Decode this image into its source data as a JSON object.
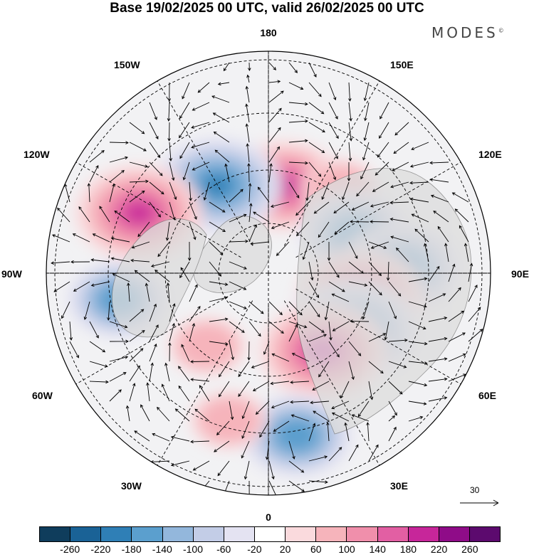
{
  "title": "Base 19/02/2025 00 UTC, valid 26/02/2025 00 UTC",
  "brand": "MODES",
  "brand_mark": "©",
  "longitude_labels": {
    "north": "180",
    "south": "0",
    "west": "90W",
    "east": "90E",
    "nw1": "150W",
    "nw2": "120W",
    "ne1": "150E",
    "ne2": "120E",
    "sw1": "60W",
    "sw2": "30W",
    "se1": "60E",
    "se2": "30E"
  },
  "reference_vector": {
    "label": "30",
    "icon": "arrow-right-icon"
  },
  "colorbar": {
    "colors": [
      "#0f3d5c",
      "#1a6296",
      "#2f7fb6",
      "#5b9fce",
      "#93b7dc",
      "#c3cde7",
      "#e4e3f2",
      "#ffffff",
      "#fadadd",
      "#f6b4bb",
      "#f08fab",
      "#e25fa3",
      "#c7269a",
      "#8f0c88",
      "#5c0a6e"
    ],
    "ticks": [
      "-260",
      "-220",
      "-180",
      "-140",
      "-100",
      "-60",
      "-20",
      "20",
      "60",
      "100",
      "140",
      "180",
      "220",
      "260"
    ]
  },
  "anomalies": [
    {
      "lon": 170,
      "lat": 62,
      "value": 160
    },
    {
      "lon": -150,
      "lat": 58,
      "value": -180
    },
    {
      "lon": -115,
      "lat": 45,
      "value": 180
    },
    {
      "lon": 140,
      "lat": 55,
      "value": 60
    },
    {
      "lon": 115,
      "lat": 60,
      "value": -140
    },
    {
      "lon": 92,
      "lat": 48,
      "value": -160
    },
    {
      "lon": 75,
      "lat": 60,
      "value": 180
    },
    {
      "lon": 55,
      "lat": 58,
      "value": -200
    },
    {
      "lon": 35,
      "lat": 60,
      "value": 180
    },
    {
      "lon": 10,
      "lat": 38,
      "value": -140
    },
    {
      "lon": -80,
      "lat": 42,
      "value": -120
    },
    {
      "lon": -40,
      "lat": 60,
      "value": 60
    },
    {
      "lon": -15,
      "lat": 42,
      "value": 60
    }
  ]
}
